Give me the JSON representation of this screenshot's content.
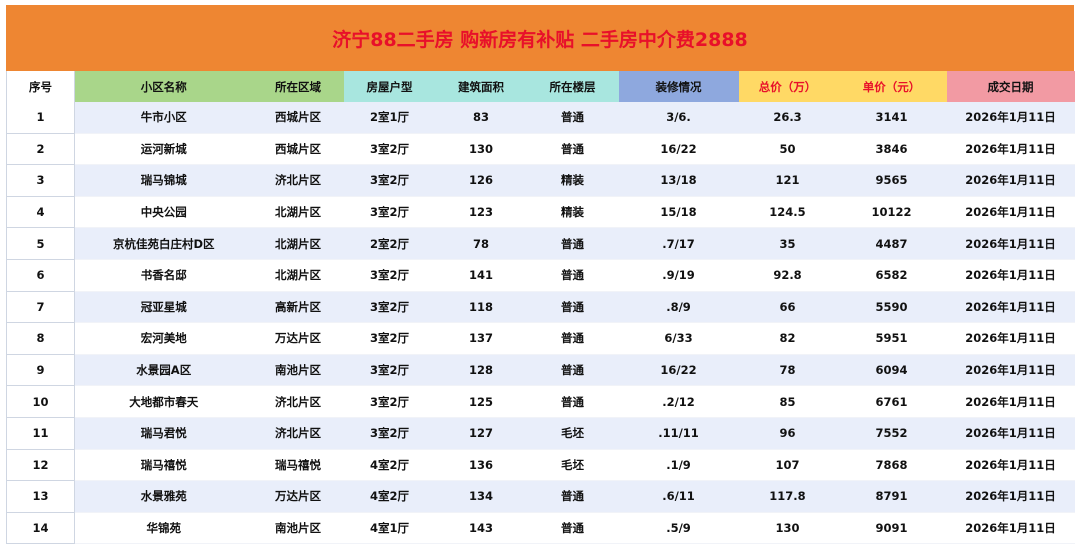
{
  "title": "济宁88二手房 购新房有补贴 二手房中介费2888",
  "colors": {
    "banner_bg": "#ee8632",
    "title_text": "#e8102a",
    "header_green": "#a9d68a",
    "header_teal": "#a8e6df",
    "header_blue": "#8ea8de",
    "header_yellow": "#ffd965",
    "header_pink": "#f29aa3",
    "band": "#e9eefa"
  },
  "columns": [
    {
      "label": "序号",
      "bg": "#ffffff",
      "color": "#111111",
      "width": 68
    },
    {
      "label": "小区名称",
      "bg": "#a9d68a",
      "color": "#111111",
      "width": 178
    },
    {
      "label": "所在区域",
      "bg": "#a9d68a",
      "color": "#111111",
      "width": 91
    },
    {
      "label": "房屋户型",
      "bg": "#a8e6df",
      "color": "#111111",
      "width": 92
    },
    {
      "label": "建筑面积",
      "bg": "#a8e6df",
      "color": "#111111",
      "width": 91
    },
    {
      "label": "所在楼层",
      "bg": "#a8e6df",
      "color": "#111111",
      "width": 92
    },
    {
      "label": "装修情况",
      "bg": "#8ea8de",
      "color": "#111111",
      "width": 120
    },
    {
      "label": "总价（万）",
      "bg": "#ffd965",
      "color": "#e8102a",
      "width": 98
    },
    {
      "label": "单价（元）",
      "bg": "#ffd965",
      "color": "#e8102a",
      "width": 110
    },
    {
      "label": "成交日期",
      "bg": "#f29aa3",
      "color": "#111111",
      "width": 128
    }
  ],
  "rows": [
    [
      "1",
      "牛市小区",
      "西城片区",
      "2室1厅",
      "83",
      "普通",
      "3/6.",
      "26.3",
      "3141",
      "2026年1月11日"
    ],
    [
      "2",
      "运河新城",
      "西城片区",
      "3室2厅",
      "130",
      "普通",
      "16/22",
      "50",
      "3846",
      "2026年1月11日"
    ],
    [
      "3",
      "瑞马锦城",
      "济北片区",
      "3室2厅",
      "126",
      "精装",
      "13/18",
      "121",
      "9565",
      "2026年1月11日"
    ],
    [
      "4",
      "中央公园",
      "北湖片区",
      "3室2厅",
      "123",
      "精装",
      "15/18",
      "124.5",
      "10122",
      "2026年1月11日"
    ],
    [
      "5",
      "京杭佳苑白庄村D区",
      "北湖片区",
      "2室2厅",
      "78",
      "普通",
      ".7/17",
      "35",
      "4487",
      "2026年1月11日"
    ],
    [
      "6",
      "书香名邸",
      "北湖片区",
      "3室2厅",
      "141",
      "普通",
      ".9/19",
      "92.8",
      "6582",
      "2026年1月11日"
    ],
    [
      "7",
      "冠亚星城",
      "高新片区",
      "3室2厅",
      "118",
      "普通",
      ".8/9",
      "66",
      "5590",
      "2026年1月11日"
    ],
    [
      "8",
      "宏河美地",
      "万达片区",
      "3室2厅",
      "137",
      "普通",
      "6/33",
      "82",
      "5951",
      "2026年1月11日"
    ],
    [
      "9",
      "水景园A区",
      "南池片区",
      "3室2厅",
      "128",
      "普通",
      "16/22",
      "78",
      "6094",
      "2026年1月11日"
    ],
    [
      "10",
      "大地都市春天",
      "济北片区",
      "3室2厅",
      "125",
      "普通",
      ".2/12",
      "85",
      "6761",
      "2026年1月11日"
    ],
    [
      "11",
      "瑞马君悦",
      "济北片区",
      "3室2厅",
      "127",
      "毛坯",
      ".11/11",
      "96",
      "7552",
      "2026年1月11日"
    ],
    [
      "12",
      "瑞马禧悦",
      "瑞马禧悦",
      "4室2厅",
      "136",
      "毛坯",
      ".1/9",
      "107",
      "7868",
      "2026年1月11日"
    ],
    [
      "13",
      "水景雅苑",
      "万达片区",
      "4室2厅",
      "134",
      "普通",
      ".6/11",
      "117.8",
      "8791",
      "2026年1月11日"
    ],
    [
      "14",
      "华锦苑",
      "南池片区",
      "4室1厅",
      "143",
      "普通",
      ".5/9",
      "130",
      "9091",
      "2026年1月11日"
    ]
  ]
}
